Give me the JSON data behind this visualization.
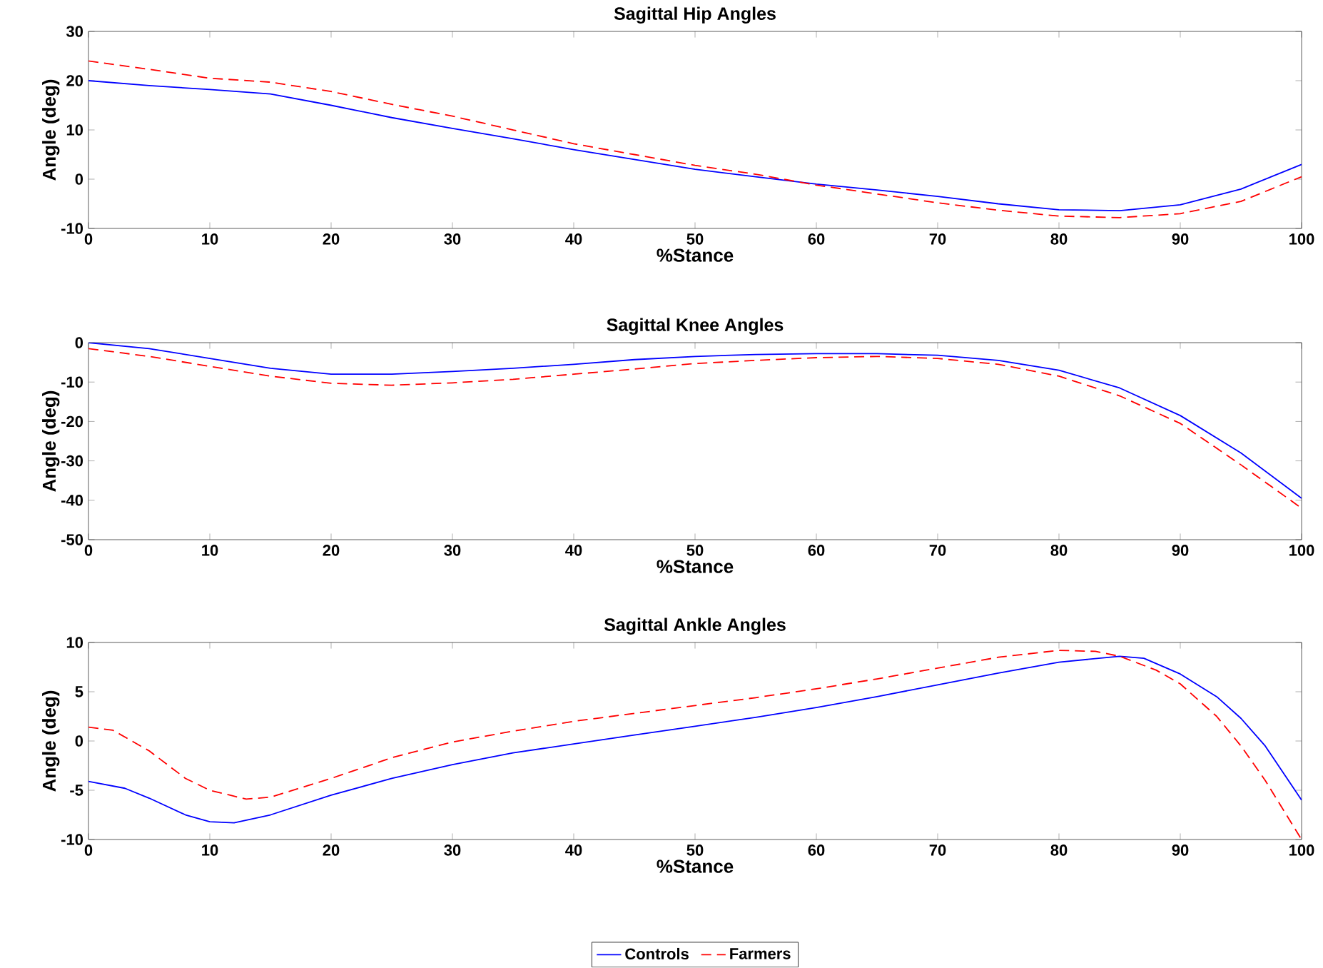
{
  "chart_data": [
    {
      "type": "line",
      "title": "Sagittal Hip Angles",
      "xlabel": "%Stance",
      "ylabel": "Angle (deg)",
      "x": [
        0,
        5,
        10,
        15,
        20,
        25,
        30,
        35,
        40,
        45,
        50,
        55,
        60,
        65,
        70,
        75,
        80,
        85,
        90,
        95,
        100
      ],
      "xlim": [
        0,
        100
      ],
      "xticks": [
        0,
        10,
        20,
        30,
        40,
        50,
        60,
        70,
        80,
        90,
        100
      ],
      "ylim": [
        -10,
        30
      ],
      "yticks": [
        -10,
        0,
        10,
        20,
        30
      ],
      "series": [
        {
          "color": "#0000ff",
          "line_style": "solid",
          "values": [
            20,
            19,
            18.2,
            17.3,
            15,
            12.5,
            10.3,
            8.2,
            6,
            4,
            2,
            0.5,
            -1,
            -2.2,
            -3.5,
            -5,
            -6.2,
            -6.4,
            -5.2,
            -2,
            3
          ]
        },
        {
          "color": "#ff0000",
          "line_style": "dashed",
          "values": [
            24,
            22.3,
            20.5,
            19.7,
            17.8,
            15.2,
            12.8,
            10,
            7.2,
            5,
            2.8,
            1,
            -1.2,
            -3,
            -4.8,
            -6.3,
            -7.5,
            -7.8,
            -7,
            -4.5,
            0.5
          ]
        }
      ]
    },
    {
      "type": "line",
      "title": "Sagittal Knee Angles",
      "xlabel": "%Stance",
      "ylabel": "Angle (deg)",
      "x": [
        0,
        5,
        10,
        15,
        20,
        25,
        30,
        35,
        40,
        45,
        50,
        55,
        60,
        65,
        70,
        75,
        80,
        85,
        90,
        95,
        100
      ],
      "xlim": [
        0,
        100
      ],
      "xticks": [
        0,
        10,
        20,
        30,
        40,
        50,
        60,
        70,
        80,
        90,
        100
      ],
      "ylim": [
        -50,
        0
      ],
      "yticks": [
        -50,
        -40,
        -30,
        -20,
        -10,
        0
      ],
      "series": [
        {
          "color": "#0000ff",
          "line_style": "solid",
          "values": [
            0,
            -1.5,
            -4,
            -6.5,
            -8,
            -8,
            -7.3,
            -6.5,
            -5.5,
            -4.3,
            -3.5,
            -3,
            -2.8,
            -2.8,
            -3.2,
            -4.5,
            -7,
            -11.5,
            -18.5,
            -28,
            -39.5
          ]
        },
        {
          "color": "#ff0000",
          "line_style": "dashed",
          "values": [
            -1.5,
            -3.5,
            -6,
            -8.5,
            -10.3,
            -10.8,
            -10.2,
            -9.3,
            -8,
            -6.7,
            -5.3,
            -4.5,
            -3.8,
            -3.5,
            -4,
            -5.5,
            -8.5,
            -13.5,
            -20.5,
            -31,
            -42
          ]
        }
      ]
    },
    {
      "type": "line",
      "title": "Sagittal Ankle Angles",
      "xlabel": "%Stance",
      "ylabel": "Angle (deg)",
      "xlim": [
        0,
        100
      ],
      "xticks": [
        0,
        10,
        20,
        30,
        40,
        50,
        60,
        70,
        80,
        90,
        100
      ],
      "ylim": [
        -10,
        10
      ],
      "yticks": [
        -10,
        -5,
        0,
        5,
        10
      ],
      "legend": "bottom",
      "series": [
        {
          "name": "Controls",
          "color": "#0000ff",
          "line_style": "solid",
          "x": [
            0,
            3,
            5,
            8,
            10,
            12,
            15,
            20,
            25,
            30,
            35,
            40,
            45,
            50,
            55,
            60,
            65,
            70,
            75,
            80,
            85,
            87,
            90,
            93,
            95,
            97,
            100
          ],
          "values": [
            -4.1,
            -4.8,
            -5.8,
            -7.5,
            -8.2,
            -8.3,
            -7.5,
            -5.5,
            -3.8,
            -2.4,
            -1.2,
            -0.3,
            0.6,
            1.5,
            2.4,
            3.4,
            4.5,
            5.7,
            6.9,
            8,
            8.6,
            8.4,
            6.8,
            4.5,
            2.3,
            -0.5,
            -6
          ]
        },
        {
          "name": "Farmers",
          "color": "#ff0000",
          "line_style": "dashed",
          "x": [
            0,
            2,
            5,
            8,
            10,
            13,
            15,
            20,
            25,
            30,
            35,
            40,
            45,
            50,
            55,
            60,
            65,
            70,
            75,
            80,
            83,
            85,
            88,
            90,
            93,
            95,
            97,
            100
          ],
          "values": [
            1.4,
            1.1,
            -1,
            -3.8,
            -5,
            -5.9,
            -5.7,
            -3.8,
            -1.7,
            -0.1,
            1,
            2,
            2.8,
            3.6,
            4.4,
            5.3,
            6.3,
            7.4,
            8.5,
            9.2,
            9.1,
            8.6,
            7.2,
            5.8,
            2.5,
            -0.5,
            -4,
            -10
          ]
        }
      ]
    }
  ]
}
